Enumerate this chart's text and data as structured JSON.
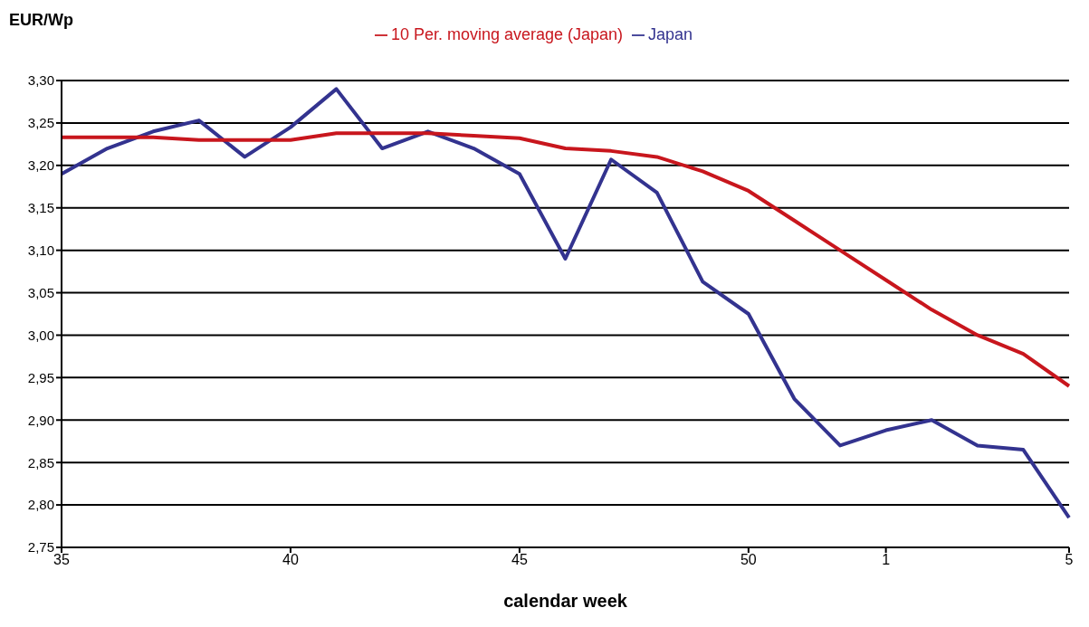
{
  "chart_data": {
    "type": "line",
    "ylabel": "EUR/Wp",
    "xlabel": "calendar week",
    "categories": [
      "35",
      null,
      null,
      null,
      null,
      "40",
      null,
      null,
      null,
      null,
      "45",
      null,
      null,
      null,
      null,
      "50",
      null,
      null,
      "1",
      null,
      null,
      null,
      "5"
    ],
    "series": [
      {
        "name": "Japan",
        "color": "#33338f",
        "values": [
          3.19,
          3.22,
          3.24,
          3.253,
          3.21,
          3.245,
          3.29,
          3.22,
          3.24,
          3.22,
          3.19,
          3.09,
          3.207,
          3.168,
          3.063,
          3.025,
          2.925,
          2.87,
          2.888,
          2.9,
          2.87,
          2.865,
          2.785
        ]
      },
      {
        "name": "10 Per. moving average (Japan)",
        "color": "#c8161d",
        "values": [
          3.233,
          3.233,
          3.233,
          3.23,
          3.23,
          3.23,
          3.238,
          3.238,
          3.238,
          3.235,
          3.232,
          3.22,
          3.217,
          3.21,
          3.193,
          3.17,
          3.135,
          3.1,
          3.065,
          3.03,
          3.0,
          2.978,
          2.94
        ]
      }
    ],
    "ylim": [
      2.75,
      3.3
    ],
    "yticks": [
      {
        "value": 2.75,
        "label": "2,75"
      },
      {
        "value": 2.8,
        "label": "2,80"
      },
      {
        "value": 2.85,
        "label": "2,85"
      },
      {
        "value": 2.9,
        "label": "2,90"
      },
      {
        "value": 2.95,
        "label": "2,95"
      },
      {
        "value": 3.0,
        "label": "3,00"
      },
      {
        "value": 3.05,
        "label": "3,05"
      },
      {
        "value": 3.1,
        "label": "3,10"
      },
      {
        "value": 3.15,
        "label": "3,15"
      },
      {
        "value": 3.2,
        "label": "3,20"
      },
      {
        "value": 3.25,
        "label": "3,25"
      },
      {
        "value": 3.3,
        "label": "3,30"
      }
    ],
    "grid": "y",
    "legend": "top",
    "marker": "none",
    "line_style": "solid"
  }
}
